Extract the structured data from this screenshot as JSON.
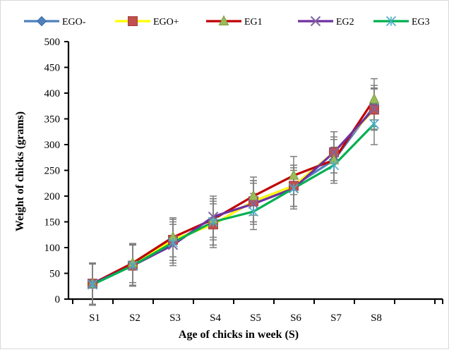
{
  "chart_data": {
    "type": "line",
    "xlabel": "Age of chicks in week (S)",
    "ylabel": "Weight of chicks (grams)",
    "categories": [
      "S1",
      "S2",
      "S3",
      "S4",
      "S5",
      "S6",
      "S7",
      "S8"
    ],
    "ylim": [
      0,
      500
    ],
    "yticks": [
      0,
      50,
      100,
      150,
      200,
      250,
      300,
      350,
      400,
      450,
      500
    ],
    "grid": false,
    "legend_position": "top",
    "error_bars": true,
    "series": [
      {
        "name": "EGO-",
        "color": "#4f81bd",
        "marker": "diamond",
        "values": [
          30,
          67,
          115,
          145,
          190,
          220,
          270,
          375
        ],
        "errors": [
          40,
          40,
          40,
          45,
          40,
          40,
          45,
          40
        ]
      },
      {
        "name": "EGO+",
        "color": "#ffff00",
        "marker": "square",
        "values": [
          30,
          65,
          115,
          145,
          190,
          220,
          285,
          368
        ],
        "errors": [
          40,
          40,
          40,
          40,
          40,
          40,
          40,
          40
        ]
      },
      {
        "name": "EG1",
        "color": "#c00000",
        "marker": "triangle",
        "values": [
          30,
          70,
          120,
          155,
          200,
          240,
          270,
          388
        ],
        "errors": [
          40,
          38,
          38,
          40,
          37,
          37,
          40,
          40
        ]
      },
      {
        "name": "EG2",
        "color": "#7030a0",
        "marker": "x",
        "values": [
          30,
          65,
          105,
          160,
          185,
          215,
          285,
          370
        ],
        "errors": [
          40,
          40,
          40,
          40,
          40,
          40,
          40,
          40
        ]
      },
      {
        "name": "EG3",
        "color": "#00b050",
        "marker": "asterisk",
        "values": [
          28,
          65,
          110,
          150,
          170,
          215,
          260,
          340
        ],
        "errors": [
          40,
          40,
          40,
          45,
          35,
          35,
          35,
          40
        ]
      }
    ]
  }
}
